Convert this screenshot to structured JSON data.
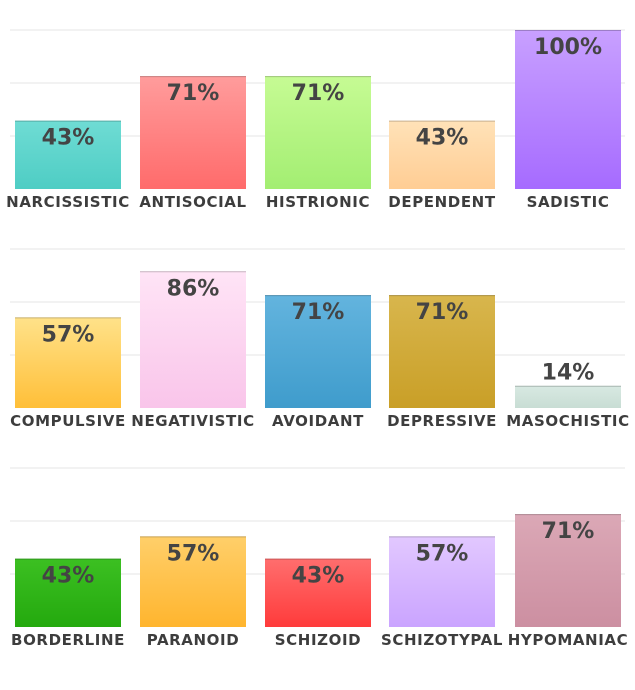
{
  "chart_data": [
    {
      "type": "bar",
      "categories": [
        "NARCISSISTIC",
        "ANTISOCIAL",
        "HISTRIONIC",
        "DEPENDENT",
        "SADISTIC"
      ],
      "values": [
        43,
        71,
        71,
        43,
        100
      ],
      "value_labels": [
        "43%",
        "71%",
        "71%",
        "43%",
        "100%"
      ],
      "ylim": [
        0,
        100
      ],
      "grid": true,
      "colors": [
        [
          "#6fdcd4",
          "#4ecdc4"
        ],
        [
          "#ff9c9c",
          "#ff6b6b"
        ],
        [
          "#c6fb94",
          "#a3ee72"
        ],
        [
          "#ffe2b8",
          "#ffcd94"
        ],
        [
          "#c8a0ff",
          "#a66bff"
        ]
      ]
    },
    {
      "type": "bar",
      "categories": [
        "COMPULSIVE",
        "NEGATIVISTIC",
        "AVOIDANT",
        "DEPRESSIVE",
        "MASOCHISTIC"
      ],
      "values": [
        57,
        86,
        71,
        71,
        14
      ],
      "value_labels": [
        "57%",
        "86%",
        "71%",
        "71%",
        "14%"
      ],
      "ylim": [
        0,
        100
      ],
      "grid": true,
      "colors": [
        [
          "#ffe28a",
          "#ffbf38"
        ],
        [
          "#ffe4f6",
          "#f9c5ea"
        ],
        [
          "#63b4de",
          "#3f9ccc"
        ],
        [
          "#d8b64d",
          "#c99f27"
        ],
        [
          "#d8e9e2",
          "#c8ddd4"
        ]
      ]
    },
    {
      "type": "bar",
      "categories": [
        "BORDERLINE",
        "PARANOID",
        "SCHIZOID",
        "SCHIZOTYPAL",
        "HYPOMANIAC"
      ],
      "values": [
        43,
        57,
        43,
        57,
        71
      ],
      "value_labels": [
        "43%",
        "57%",
        "43%",
        "57%",
        "71%"
      ],
      "ylim": [
        0,
        100
      ],
      "grid": true,
      "colors": [
        [
          "#3cc022",
          "#24a90e"
        ],
        [
          "#ffcf6a",
          "#ffb52e"
        ],
        [
          "#ff6e6e",
          "#ff3b3b"
        ],
        [
          "#e2c8ff",
          "#caa4ff"
        ],
        [
          "#dba8b6",
          "#cc8fa1"
        ]
      ]
    }
  ]
}
